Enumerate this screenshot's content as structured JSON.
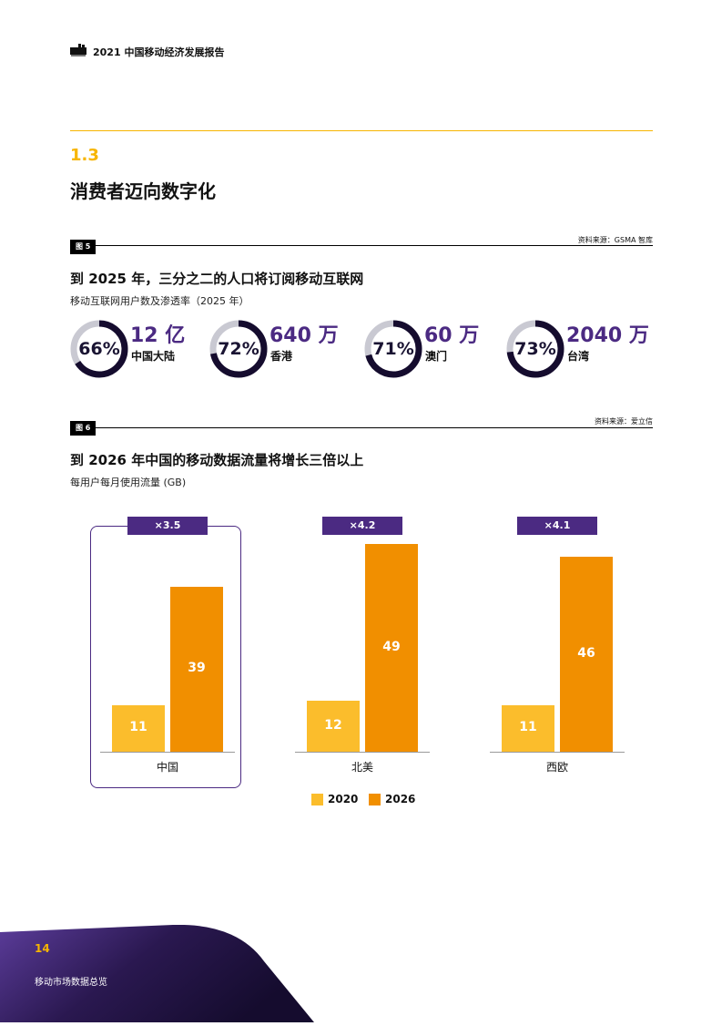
{
  "header": {
    "title": "2021 中国移动经济发展报告"
  },
  "section": {
    "number": "1.3",
    "title": "消费者迈向数字化"
  },
  "figure5": {
    "tag": "图 5",
    "source": "资料来源：GSMA 智库",
    "title": "到 2025 年，三分之二的人口将订阅移动互联网",
    "subtitle": "移动互联网用户数及渗透率（2025 年）",
    "items": [
      {
        "pct_label": "66%",
        "pct": 66,
        "users": "12 亿",
        "region": "中国大陆"
      },
      {
        "pct_label": "72%",
        "pct": 72,
        "users": "640 万",
        "region": "香港"
      },
      {
        "pct_label": "71%",
        "pct": 71,
        "users": "60 万",
        "region": "澳门"
      },
      {
        "pct_label": "73%",
        "pct": 73,
        "users": "2040 万",
        "region": "台湾"
      }
    ]
  },
  "figure6": {
    "tag": "图 6",
    "source": "资料来源：爱立信",
    "title": "到 2026 年中国的移动数据流量将增长三倍以上",
    "subtitle": "每用户每月使用流量 (GB)"
  },
  "chart_data": {
    "type": "bar",
    "categories": [
      "中国",
      "北美",
      "西欧"
    ],
    "series": [
      {
        "name": "2020",
        "values": [
          11,
          12,
          11
        ]
      },
      {
        "name": "2026",
        "values": [
          39,
          49,
          46
        ]
      }
    ],
    "multipliers": [
      "×3.5",
      "×4.2",
      "×4.1"
    ],
    "legend": [
      "2020",
      "2026"
    ],
    "colors": {
      "2020": "#fbbd2c",
      "2026": "#f18f00",
      "multiplier": "#4b2a82"
    }
  },
  "footer": {
    "page": "14",
    "section": "移动市场数据总览"
  }
}
